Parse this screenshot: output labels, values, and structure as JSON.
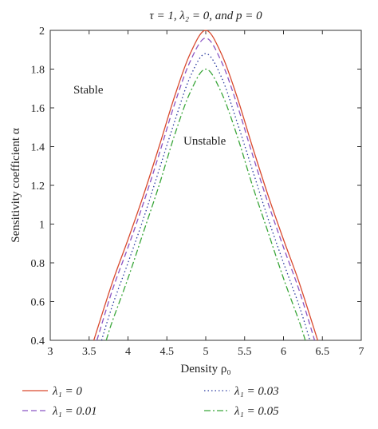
{
  "chart_data": {
    "type": "line",
    "title": "τ = 1, λ₂ = 0, and p = 0",
    "xlabel": "Density ρ₀",
    "ylabel": "Sensitivity coefficient α",
    "xlim": [
      3,
      7
    ],
    "ylim": [
      0.4,
      2
    ],
    "xticks": [
      "3",
      "3.5",
      "4",
      "4.5",
      "5",
      "5.5",
      "6",
      "6.5",
      "7"
    ],
    "yticks": [
      "0.4",
      "0.6",
      "0.8",
      "1",
      "1.2",
      "1.4",
      "1.6",
      "1.8",
      "2"
    ],
    "grid": false,
    "legend_position": "bottom",
    "annotations": {
      "stable": "Stable",
      "unstable": "Unstable"
    },
    "series": [
      {
        "name": "λ₁ = 0",
        "color": "#d9492e",
        "dash": "solid",
        "x": [
          3.56,
          3.8,
          4.0,
          4.2,
          4.4,
          4.6,
          4.8,
          5.0,
          5.2,
          5.4,
          5.6,
          5.8,
          6.0,
          6.2,
          6.44
        ],
        "y": [
          0.4,
          0.7,
          0.92,
          1.15,
          1.4,
          1.66,
          1.88,
          2.0,
          1.88,
          1.66,
          1.4,
          1.15,
          0.92,
          0.7,
          0.4
        ]
      },
      {
        "name": "λ₁ = 0.01",
        "color": "#8a55c4",
        "dash": "dashed",
        "x": [
          3.6,
          3.8,
          4.0,
          4.2,
          4.4,
          4.6,
          4.8,
          5.0,
          5.2,
          5.4,
          5.6,
          5.8,
          6.0,
          6.2,
          6.4
        ],
        "y": [
          0.4,
          0.66,
          0.88,
          1.11,
          1.36,
          1.62,
          1.84,
          1.96,
          1.84,
          1.62,
          1.36,
          1.11,
          0.88,
          0.66,
          0.4
        ]
      },
      {
        "name": "λ₁ = 0.03",
        "color": "#2a3aa0",
        "dash": "dotted",
        "x": [
          3.66,
          3.8,
          4.0,
          4.2,
          4.4,
          4.6,
          4.8,
          5.0,
          5.2,
          5.4,
          5.6,
          5.8,
          6.0,
          6.2,
          6.34
        ],
        "y": [
          0.4,
          0.58,
          0.8,
          1.03,
          1.28,
          1.53,
          1.76,
          1.88,
          1.76,
          1.53,
          1.28,
          1.03,
          0.8,
          0.58,
          0.4
        ]
      },
      {
        "name": "λ₁ = 0.05",
        "color": "#3aa63a",
        "dash": "dashdot",
        "x": [
          3.72,
          3.8,
          4.0,
          4.2,
          4.4,
          4.6,
          4.8,
          5.0,
          5.2,
          5.4,
          5.6,
          5.8,
          6.0,
          6.2,
          6.28
        ],
        "y": [
          0.4,
          0.5,
          0.72,
          0.96,
          1.2,
          1.46,
          1.68,
          1.8,
          1.68,
          1.46,
          1.2,
          0.96,
          0.72,
          0.5,
          0.4
        ]
      }
    ]
  }
}
